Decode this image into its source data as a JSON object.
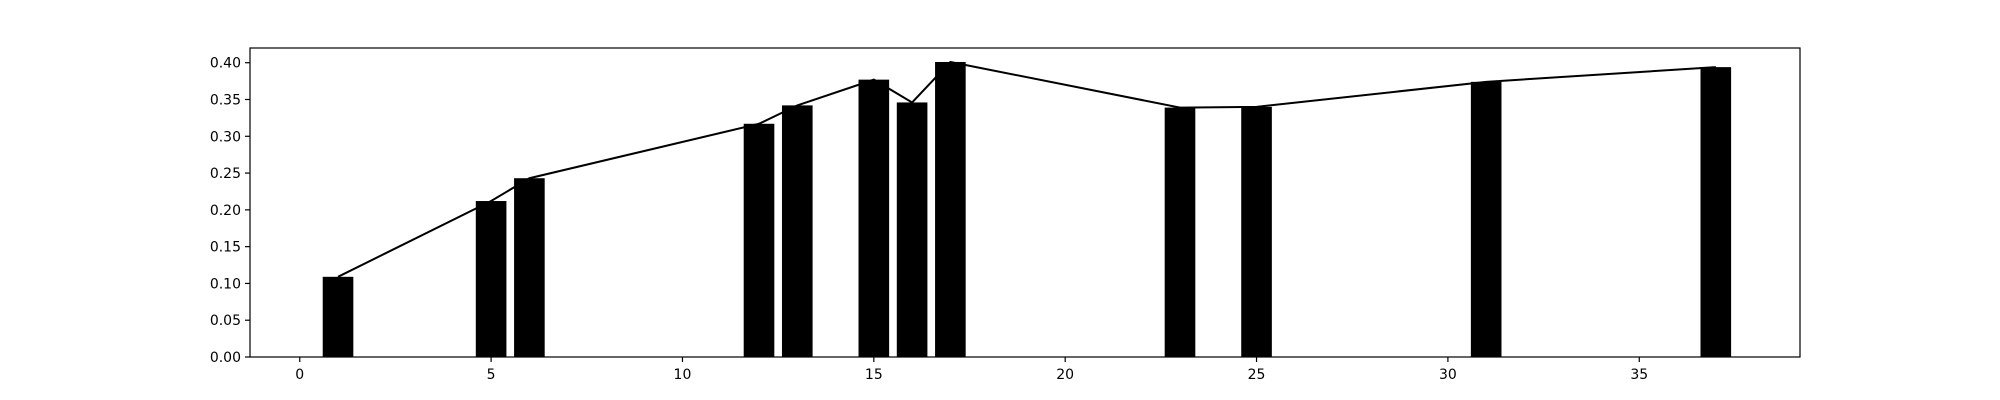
{
  "chart_data": {
    "type": "bar",
    "title": "",
    "xlabel": "",
    "ylabel": "",
    "xlim": [
      -1.3,
      39.2
    ],
    "ylim": [
      0,
      0.42
    ],
    "bar_width": 0.8,
    "x": [
      1,
      5,
      6,
      12,
      13,
      15,
      16,
      17,
      23,
      25,
      31,
      37
    ],
    "values": [
      0.109,
      0.212,
      0.243,
      0.317,
      0.342,
      0.377,
      0.346,
      0.401,
      0.339,
      0.34,
      0.374,
      0.394
    ],
    "line_overlay": true,
    "x_ticks": [
      0,
      5,
      10,
      15,
      20,
      25,
      30,
      35
    ],
    "x_tick_labels": [
      "0",
      "5",
      "10",
      "15",
      "20",
      "25",
      "30",
      "35"
    ],
    "y_ticks": [
      0,
      0.05,
      0.1,
      0.15,
      0.2,
      0.25,
      0.3,
      0.35,
      0.4
    ],
    "y_tick_labels": [
      "0.00",
      "0.05",
      "0.10",
      "0.15",
      "0.20",
      "0.25",
      "0.30",
      "0.35",
      "0.40"
    ],
    "grid": false,
    "legend": "none",
    "colors": {
      "bar": "#000000",
      "line": "#000000",
      "axis": "#000000",
      "background": "#ffffff"
    }
  }
}
